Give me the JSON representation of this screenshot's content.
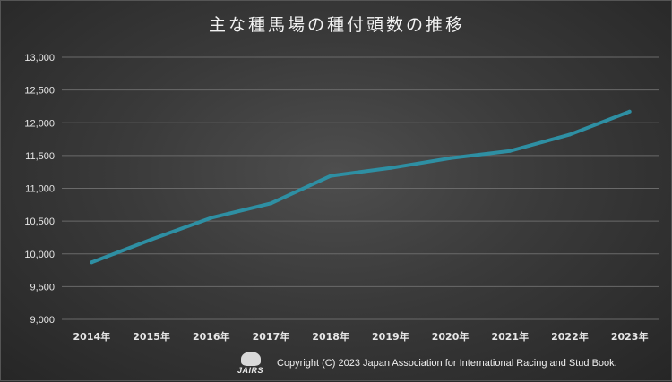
{
  "chart_data": {
    "type": "line",
    "title": "主な種馬場の種付頭数の推移",
    "categories": [
      "2014年",
      "2015年",
      "2016年",
      "2017年",
      "2018年",
      "2019年",
      "2020年",
      "2021年",
      "2022年",
      "2023年"
    ],
    "series": [
      {
        "values": [
          9870,
          10220,
          10550,
          10770,
          11190,
          11310,
          11460,
          11570,
          11820,
          12170
        ]
      }
    ],
    "ylim": [
      9000,
      13000
    ],
    "yticks": [
      9000,
      9500,
      10000,
      10500,
      11000,
      11500,
      12000,
      12500,
      13000
    ],
    "ytick_labels": [
      "9,000",
      "9,500",
      "10,000",
      "10,500",
      "11,000",
      "11,500",
      "12,000",
      "12,500",
      "13,000"
    ],
    "grid": true,
    "line_color": "#2e8fa3"
  },
  "footer": {
    "logo_text": "JAIRS",
    "copyright": "Copyright (C) 2023 Japan Association for International Racing and Stud Book."
  }
}
